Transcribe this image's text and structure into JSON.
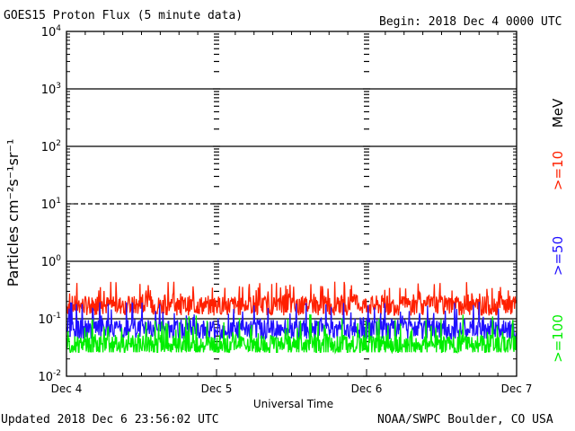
{
  "header": {
    "title": "GOES15 Proton Flux (5 minute data)",
    "begin": "Begin: 2018 Dec 4 0000 UTC"
  },
  "footer": {
    "updated": "Updated 2018 Dec  6 23:56:02 UTC",
    "credit": "NOAA/SWPC Boulder, CO USA"
  },
  "chart_data": {
    "type": "line",
    "title": "GOES15 Proton Flux (5 minute data)",
    "xlabel": "Universal Time",
    "ylabel": "Particles cm⁻²s⁻¹sr⁻¹",
    "yscale": "log",
    "ylim": [
      0.01,
      10000
    ],
    "y_ticks": [
      {
        "base": "10",
        "exp": "-2",
        "value": 0.01
      },
      {
        "base": "10",
        "exp": "-1",
        "value": 0.1
      },
      {
        "base": "10",
        "exp": "0",
        "value": 1
      },
      {
        "base": "10",
        "exp": "1",
        "value": 10
      },
      {
        "base": "10",
        "exp": "2",
        "value": 100
      },
      {
        "base": "10",
        "exp": "3",
        "value": 1000
      },
      {
        "base": "10",
        "exp": "4",
        "value": 10000
      }
    ],
    "x_ticks": [
      "Dec 4",
      "Dec 5",
      "Dec 6",
      "Dec 7"
    ],
    "xlim_days": [
      0,
      3
    ],
    "reference_lines": [
      {
        "value": 10,
        "style": "dashed"
      },
      {
        "value": 100,
        "style": "solid"
      },
      {
        "value": 1000,
        "style": "solid"
      },
      {
        "value": 1,
        "style": "solid"
      },
      {
        "value": 0.1,
        "style": "solid"
      }
    ],
    "unit_label": "MeV",
    "series": [
      {
        "name": ">=10",
        "color": "#ff2000",
        "typical": 0.17,
        "range": [
          0.11,
          0.45
        ]
      },
      {
        "name": ">=50",
        "color": "#2010ff",
        "typical": 0.065,
        "range": [
          0.045,
          0.2
        ]
      },
      {
        "name": ">=100",
        "color": "#00ee00",
        "typical": 0.035,
        "range": [
          0.026,
          0.12
        ]
      }
    ]
  }
}
